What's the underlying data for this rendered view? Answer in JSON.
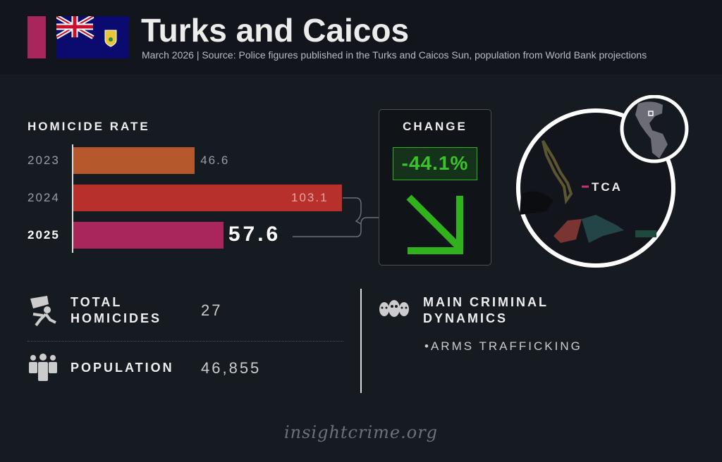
{
  "header": {
    "title": "Turks and Caicos",
    "subtitle": "March 2026 | Source: Police figures published in the Turks and Caicos Sun, population from World Bank projections",
    "accent_color": "#a8265a",
    "flag": "turks-and-caicos-flag"
  },
  "chart_data": {
    "type": "bar",
    "orientation": "horizontal",
    "title": "HOMICIDE RATE",
    "categories": [
      "2023",
      "2024",
      "2025"
    ],
    "values": [
      46.6,
      103.1,
      57.6
    ],
    "value_labels": [
      "46.6",
      "103.1",
      "57.6"
    ],
    "colors": [
      "#b5582c",
      "#b8302c",
      "#a8265a"
    ],
    "xlim": [
      0,
      103.1
    ],
    "grid": false
  },
  "change": {
    "label": "CHANGE",
    "value": "-44.1%",
    "direction": "down",
    "color": "#2fb21c"
  },
  "map": {
    "label": "TCA",
    "highlight_color": "#c8307a"
  },
  "stats": {
    "total_homicides": {
      "label_line1": "TOTAL",
      "label_line2": "HOMICIDES",
      "value": "27",
      "icon": "homicide-icon"
    },
    "population": {
      "label": "POPULATION",
      "value": "46,855",
      "icon": "people-icon"
    }
  },
  "dynamics": {
    "title_line1": "MAIN CRIMINAL",
    "title_line2": "DYNAMICS",
    "items": [
      "•ARMS TRAFFICKING"
    ],
    "icon": "masked-criminals-icon"
  },
  "footer": {
    "text": "insightcrime.org"
  }
}
